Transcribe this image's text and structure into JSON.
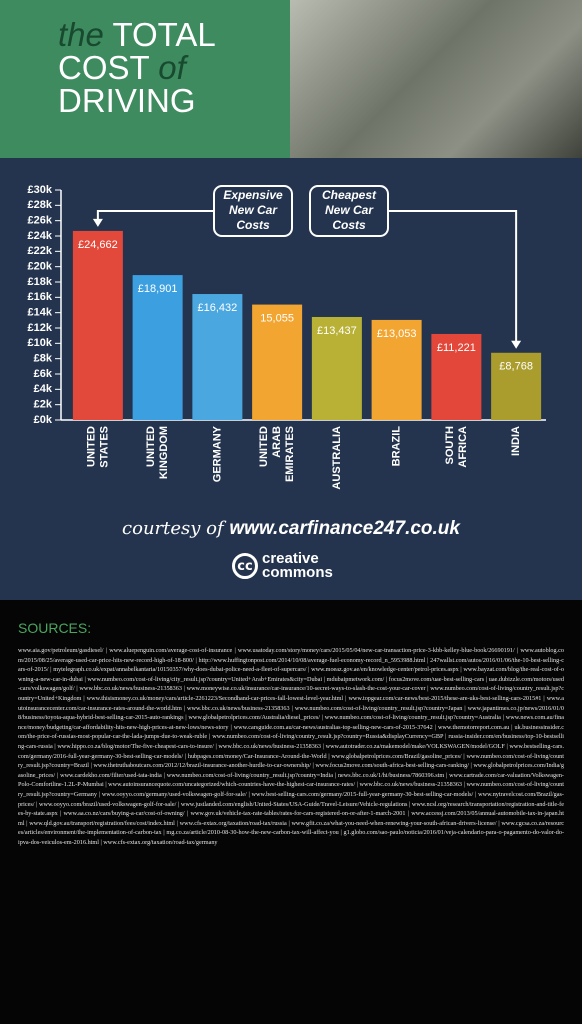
{
  "header": {
    "title": [
      "the",
      "TOTAL",
      "COST",
      "of",
      "DRIVING"
    ]
  },
  "chart_data": {
    "type": "bar",
    "categories": [
      "UNITED STATES",
      "UNITED KINGDOM",
      "GERMANY",
      "UNITED ARAB EMIRATES",
      "AUSTRALIA",
      "BRAZIL",
      "SOUTH AFRICA",
      "INDIA"
    ],
    "values": [
      24662,
      18901,
      16432,
      15055,
      13437,
      13053,
      11221,
      8768
    ],
    "value_labels": [
      "£24,662",
      "£18,901",
      "£16,432",
      "15,055",
      "£13,437",
      "£13,053",
      "£11,221",
      "£8,768"
    ],
    "colors": [
      "#e2493b",
      "#3c9fe0",
      "#4aa7df",
      "#f2a531",
      "#b9b136",
      "#f2a531",
      "#e2473a",
      "#ab9c2e"
    ],
    "ylim": [
      0,
      30000
    ],
    "yticks": [
      {
        "value": 0,
        "label": "£0k"
      },
      {
        "value": 2000,
        "label": "£2k"
      },
      {
        "value": 4000,
        "label": "£4k"
      },
      {
        "value": 6000,
        "label": "£6k"
      },
      {
        "value": 8000,
        "label": "£8k"
      },
      {
        "value": 10000,
        "label": "£10k"
      },
      {
        "value": 12000,
        "label": "£12k"
      },
      {
        "value": 14000,
        "label": "£14k"
      },
      {
        "value": 16000,
        "label": "£16k"
      },
      {
        "value": 18000,
        "label": "£18k"
      },
      {
        "value": 20000,
        "label": "£20k"
      },
      {
        "value": 22000,
        "label": "£22k"
      },
      {
        "value": 24000,
        "label": "£24k"
      },
      {
        "value": 26000,
        "label": "£26k"
      },
      {
        "value": 28000,
        "label": "£28k"
      },
      {
        "value": 30000,
        "label": "£30k"
      }
    ],
    "annotations": [
      "Expensive New Car Costs",
      "Cheapest New Car Costs"
    ]
  },
  "footer": {
    "courtesy": "courtesy of",
    "site": "www.carfinance247.co.uk",
    "logo": "cc",
    "license": [
      "creative",
      "commons"
    ]
  },
  "sources": {
    "heading": "SOURCES:",
    "text": "www.aia.gov/petroleum/gasdiesel/ | www.aluepenguin.com/average-cost-of-insurance | www.usatoday.com/story/money/cars/2015/05/04/new-car-transaction-price-3-kbb-kelley-blue-book/26690191/ | www.autoblog.com/2015/08/25/average-used-car-price-hits-new-record-high-of-18-800/ | http://www.huffingtonpost.com/2014/10/08/average-fuel-economy-record_n_5953988.html | 247wallst.com/autos/2016/01/06/the-10-best-selling-cars-of-2015/ | mytelegraph.co.uk/expat/annabelkantaria/10150357/why-does-dubai-police-need-a-fleet-of-supercars/ | www.moeaz.gov.ae/en/knowledge-center/petrol-prices.aspx | www.bayzat.com/blog/the-real-cost-of-owning-a-new-car-in-dubai | www.numbeo.com/cost-of-living/city_result.jsp?country=United+Arab+Emirates&city=Dubai | mdubaipmetwork.com/ | focus2move.com/uae-best-selling-cars | uae.dubizzle.com/motors/used-cars/volkswagen/golf/ | www.bbc.co.uk/news/business-21358363 | www.moneywise.co.uk/insurance/car-insurance/10-secret-ways-to-slash-the-cost-your-car-cover | www.numbeo.com/cost-of-living/country_result.jsp?country=United+Kingdom | www.thisismoney.co.uk/money/cars/article-2261223/Secondhand-car-prices-fall-lowest-level-year.html | www.topgear.com/car-news/best-2015/these-are-uks-best-selling-cars-2015#1 | www.autoinsurancecenter.com/car-insurance-rates-around-the-world.htm | www.bbc.co.uk/news/business-21358363 | www.numbeo.com/cost-of-living/country_result.jsp?country=Japan | www.japantimes.co.jp/news/2016/01/08/business/toyota-aqua-hybrid-best-selling-car-2015-auto-rankings | www.globalpetrolprices.com/Australia/diesel_prices/ | www.numbeo.com/cost-of-living/country_result.jsp?country=Australia | www.news.com.au/finance/money/budgeting/car-affordability-hits-new-high-prices-at-new-lows/news-story | www.carsguide.com.au/car-news/australias-top-selling-new-cars-of-2015-37642 | www.themotorreport.com.au | uk.businessinsider.com/the-price-of-russias-most-popular-car-the-lada-jumps-due-to-weak-ruble | www.numbeo.com/cost-of-living/country_result.jsp?country=Russia&displayCurrency=GBP | russia-insider.com/en/business/top-10-bestselling-cars-russia | www.hippo.co.za/blog/motor/The-five-cheapest-cars-to-insure/ | www.bbc.co.uk/news/business-21358363 | www.autotrader.co.za/makemodel/make/VOLKSWAGEN/model/GOLF | www.bestselling-cars.com/germany/2016-full-year-germany-30-best-selling-car-models/ | hubpages.com/money/Car-Insurance-Around-the-World | www.globalpetrolprices.com/Brazil/gasoline_prices/ | www.numbeo.com/cost-of-living/country_result.jsp?country=Brazil | www.thetruthaboutcars.com/2012/12/brazil-insurance-another-hurdle-to-car-ownership/ | www.focus2move.com/south-africa-best-selling-cars-ranking/ | www.globalpetrolprices.com/India/gasoline_prices/ | www.cardekho.com/filter/used-tata-india | www.numbeo.com/cost-of-living/country_result.jsp?country=India | news.bbc.co.uk/1/hi/business/7860396.stm | www.cartrade.com/car-valuation/Volkswagen-Polo-Comfortline-1.2L-P-Mumbai | www.autoinsurancequote.com/uncategorized/which-countries-have-the-highest-car-insurance-rates/ | www.bbc.co.uk/news/business-21358363 | www.numbeo.com/cost-of-living/country_result.jsp?country=Germany | www.ooyyo.com/germany/used-volkswagen-golf-for-sale/ | www.best-selling-cars.com/germany/2015-full-year-germany-30-best-selling-car-models/ | www.nytravelcost.com/Brazil/gas-prices/ | www.ooyyo.com/brazil/used-volkswagen-golf-for-sale/ | www.justlanded.com/english/United-States/USA-Guide/Travel-Leisure/Vehicle-regulations | www.ncsl.org/research/transportation/registration-and-title-fees-by-state.aspx | www.aa.co.nz/cars/buying-a-car/cost-of-owning/ | www.gov.uk/vehicle-tax-rate-tables/rates-for-cars-registered-on-or-after-1-march-2001 | www.accessj.com/2013/05/annual-automobile-tax-in-japan.html | www.qld.gov.au/transport/registration/fees/cost/index.html | www.cfs-extax.org/taxation/road-tax/russia | www.gfit.co.za/what-you-need-when-renewing-your-south-african-drivers-license/ | www.cgcsa.co.za/resources/articles/environment/the-implementation-of-carbon-tax | mg.co.za/article/2010-08-30-how-the-new-carbon-tax-will-affect-you | g1.globo.com/sao-paulo/noticia/2016/01/veja-calendario-para-o-pagamento-do-valor-do-ipva-dos-veiculos-em-2016.html | www.cfs-extax.org/taxation/road-tax/germany"
  }
}
